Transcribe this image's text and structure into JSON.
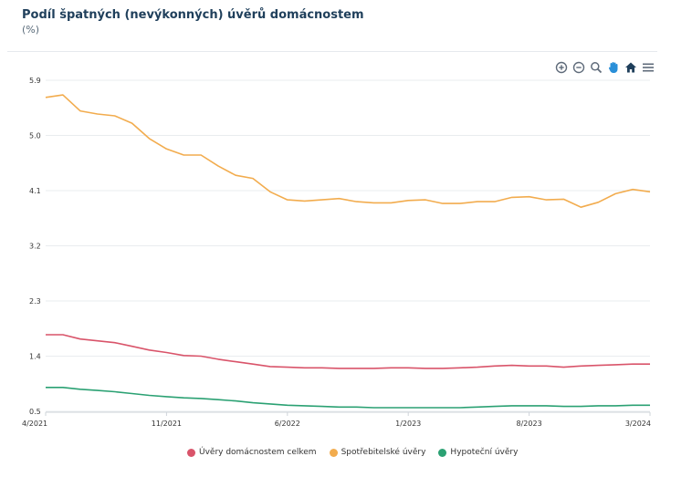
{
  "header": {
    "title": "Podíl špatných (nevýkonných) úvěrů domácnostem",
    "unit": "(%)"
  },
  "toolbar": {
    "icons": [
      "zoom-in-icon",
      "zoom-out-icon",
      "zoom-select-icon",
      "pan-icon",
      "reset-home-icon",
      "menu-icon"
    ]
  },
  "chart_data": {
    "type": "line",
    "x": [
      "4/2021",
      "5/2021",
      "6/2021",
      "7/2021",
      "8/2021",
      "9/2021",
      "10/2021",
      "11/2021",
      "12/2021",
      "1/2022",
      "2/2022",
      "3/2022",
      "4/2022",
      "5/2022",
      "6/2022",
      "7/2022",
      "8/2022",
      "9/2022",
      "10/2022",
      "11/2022",
      "12/2022",
      "1/2023",
      "2/2023",
      "3/2023",
      "4/2023",
      "5/2023",
      "6/2023",
      "7/2023",
      "8/2023",
      "9/2023",
      "10/2023",
      "11/2023",
      "12/2023",
      "1/2024",
      "2/2024",
      "3/2024"
    ],
    "x_tick_labels": [
      "4/2021",
      "11/2021",
      "6/2022",
      "1/2023",
      "8/2023",
      "3/2024"
    ],
    "y_ticks": [
      "0.5",
      "1.4",
      "2.3",
      "3.2",
      "4.1",
      "5.0",
      "5.9"
    ],
    "ylim": [
      0.5,
      5.9
    ],
    "grid": true,
    "legend_position": "bottom",
    "series": [
      {
        "name": "Úvěry domácnostem celkem",
        "color": "#d9546a",
        "values": [
          1.75,
          1.75,
          1.68,
          1.65,
          1.62,
          1.56,
          1.5,
          1.46,
          1.41,
          1.4,
          1.35,
          1.31,
          1.27,
          1.23,
          1.22,
          1.21,
          1.21,
          1.2,
          1.2,
          1.2,
          1.21,
          1.21,
          1.2,
          1.2,
          1.21,
          1.22,
          1.24,
          1.25,
          1.24,
          1.24,
          1.22,
          1.24,
          1.25,
          1.26,
          1.27,
          1.27
        ]
      },
      {
        "name": "Spotřebitelské úvěry",
        "color": "#f2ac4e",
        "values": [
          5.62,
          5.66,
          5.4,
          5.35,
          5.32,
          5.2,
          4.95,
          4.78,
          4.68,
          4.68,
          4.5,
          4.35,
          4.3,
          4.08,
          3.95,
          3.93,
          3.95,
          3.97,
          3.92,
          3.9,
          3.9,
          3.94,
          3.95,
          3.89,
          3.89,
          3.92,
          3.92,
          3.99,
          4.0,
          3.95,
          3.96,
          3.83,
          3.91,
          4.05,
          4.12,
          4.08
        ]
      },
      {
        "name": "Hypoteční úvěry",
        "color": "#2ba173",
        "values": [
          0.89,
          0.89,
          0.86,
          0.84,
          0.82,
          0.79,
          0.76,
          0.74,
          0.72,
          0.71,
          0.69,
          0.67,
          0.64,
          0.62,
          0.6,
          0.59,
          0.58,
          0.57,
          0.57,
          0.56,
          0.56,
          0.56,
          0.56,
          0.56,
          0.56,
          0.57,
          0.58,
          0.59,
          0.59,
          0.59,
          0.58,
          0.58,
          0.59,
          0.59,
          0.6,
          0.6
        ]
      }
    ]
  }
}
